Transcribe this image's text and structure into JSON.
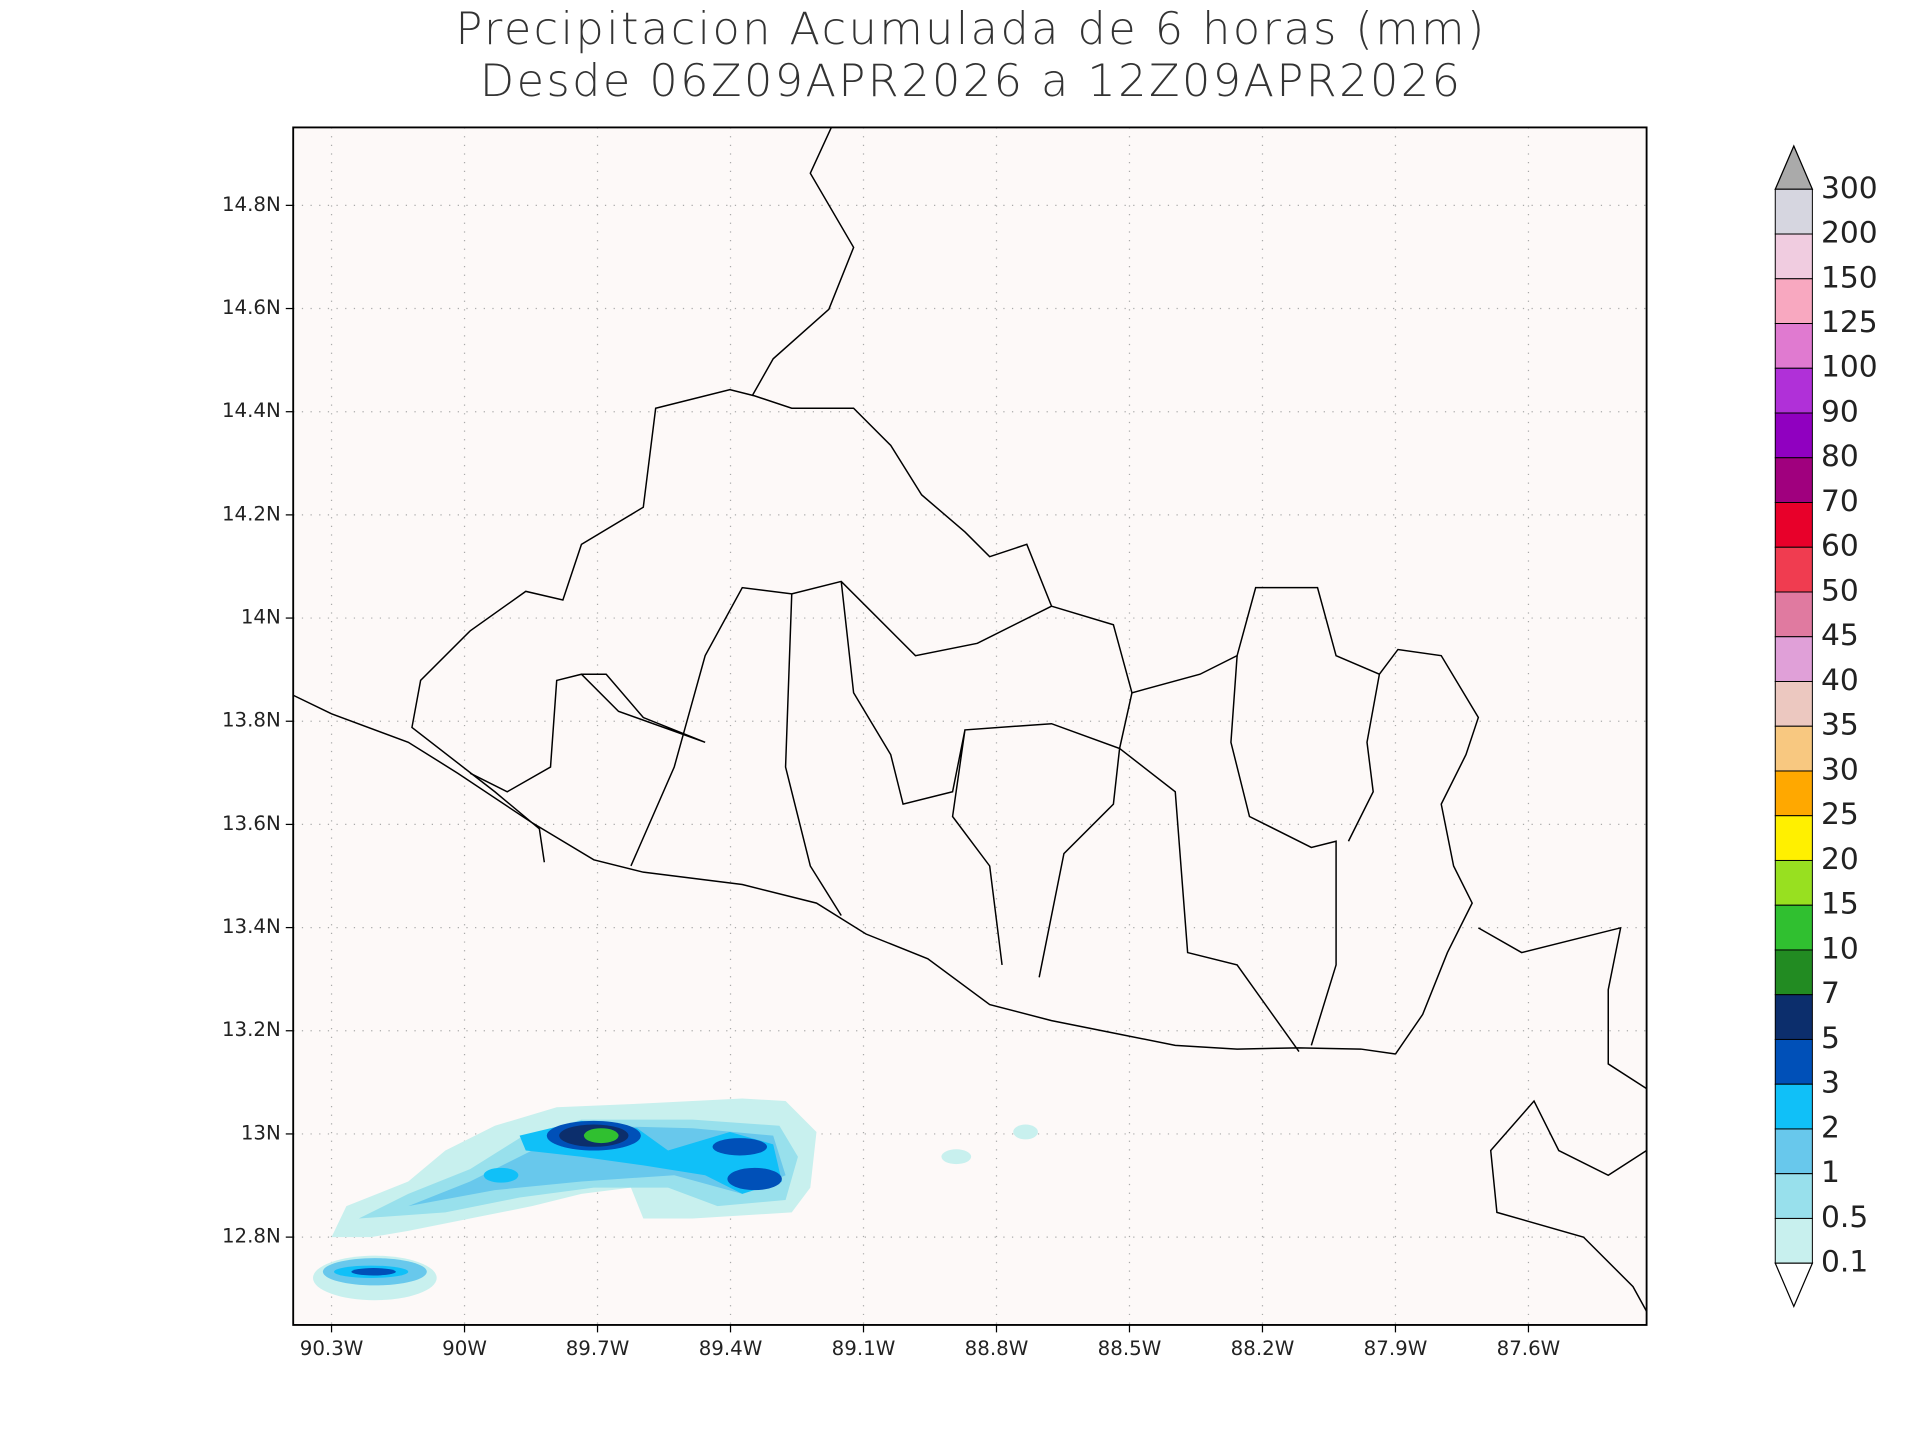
{
  "title": [
    "Precipitacion Acumulada de 6 horas (mm)",
    "Desde 06Z09APR2026 a 12Z09APR2026"
  ],
  "map": {
    "x_labels": [
      "90.3W",
      "90W",
      "89.7W",
      "89.4W",
      "89.1W",
      "88.8W",
      "88.5W",
      "88.2W",
      "87.9W",
      "87.6W"
    ],
    "y_labels": [
      "14.8N",
      "14.6N",
      "14.4N",
      "14.2N",
      "14N",
      "13.8N",
      "13.6N",
      "13.4N",
      "13.2N",
      "13N",
      "12.8N"
    ]
  },
  "colorbar": {
    "labels": [
      "300",
      "200",
      "150",
      "125",
      "100",
      "90",
      "80",
      "70",
      "60",
      "50",
      "45",
      "40",
      "35",
      "30",
      "25",
      "20",
      "15",
      "10",
      "7",
      "5",
      "3",
      "2",
      "1",
      "0.5",
      "0.1"
    ],
    "colors": [
      "#d6d6e0",
      "#f0cce0",
      "#f8a8c0",
      "#e07ad0",
      "#b030d8",
      "#9000c0",
      "#a0007e",
      "#e8002a",
      "#f03c50",
      "#e07aa0",
      "#e0a0d8",
      "#ecc8c0",
      "#f8c880",
      "#ffa800",
      "#fff000",
      "#98e020",
      "#30c030",
      "#228b22",
      "#0c2e6c",
      "#0050b8",
      "#10c0f8",
      "#68c8ec",
      "#98e0ec",
      "#c8f0ee"
    ],
    "over_color": "#aaaaaa",
    "under_color": "#ffffff"
  }
}
